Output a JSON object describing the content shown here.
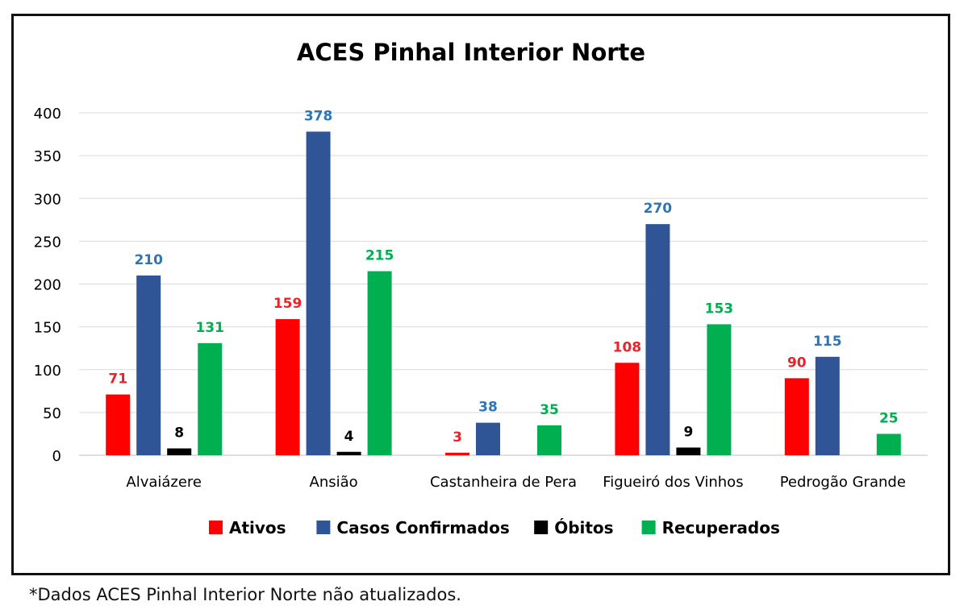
{
  "chart_data": {
    "type": "bar",
    "title": "ACES Pinhal Interior Norte",
    "categories": [
      "Alvaiázere",
      "Ansião",
      "Castanheira de Pera",
      "Figueiró dos Vinhos",
      "Pedrogão Grande"
    ],
    "series": [
      {
        "name": "Ativos",
        "color": "#ff0000",
        "label_color": "#e8232a",
        "values": [
          71,
          159,
          3,
          108,
          90
        ]
      },
      {
        "name": "Casos Confirmados",
        "color": "#2f5597",
        "label_color": "#2e75b6",
        "values": [
          210,
          378,
          38,
          270,
          115
        ]
      },
      {
        "name": "Óbitos",
        "color": "#000000",
        "label_color": "#000000",
        "values": [
          8,
          4,
          null,
          9,
          null
        ]
      },
      {
        "name": "Recuperados",
        "color": "#00b050",
        "label_color": "#00b050",
        "values": [
          131,
          215,
          35,
          153,
          25
        ]
      }
    ],
    "ylim": [
      0,
      400
    ],
    "yticks": [
      0,
      50,
      100,
      150,
      200,
      250,
      300,
      350,
      400
    ],
    "grid": true,
    "legend": "bottom"
  },
  "footnote": "*Dados ACES Pinhal Interior Norte não atualizados."
}
